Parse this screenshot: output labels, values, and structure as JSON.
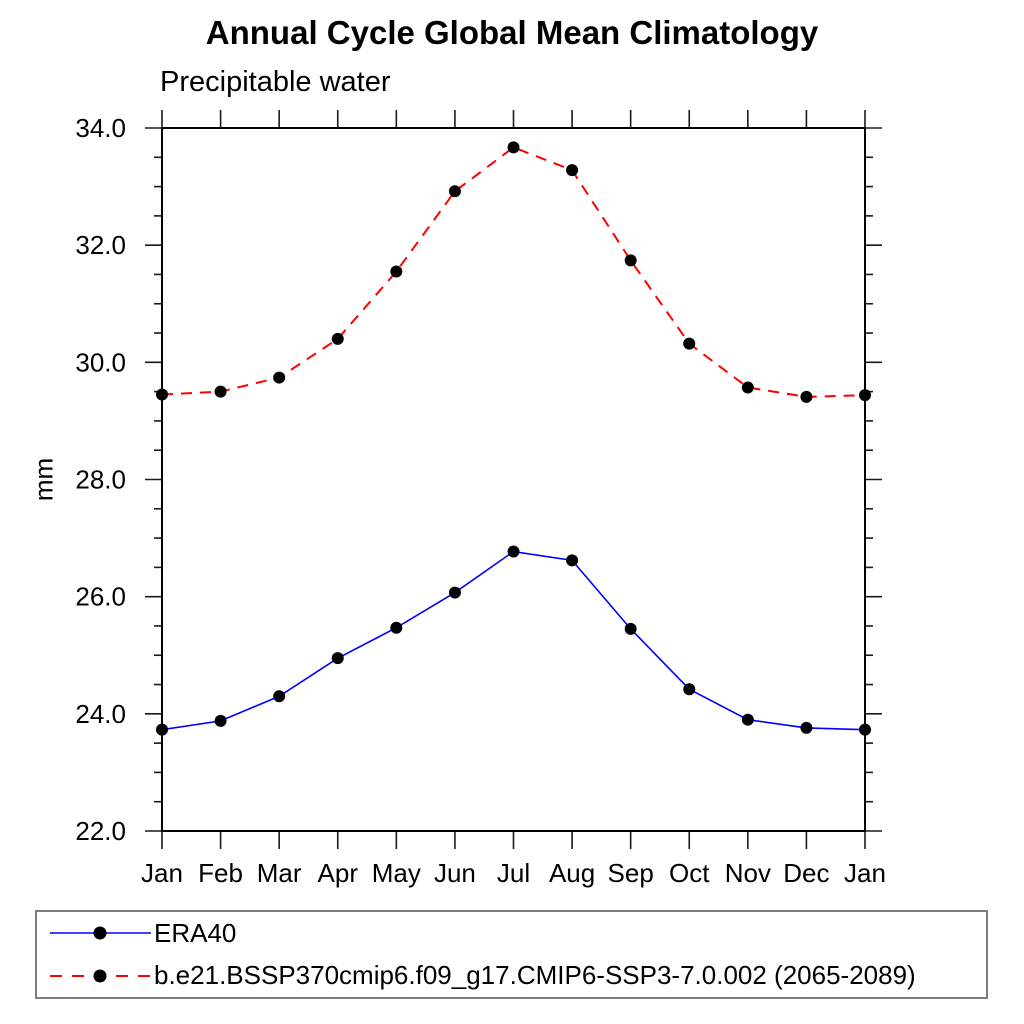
{
  "chart_data": {
    "type": "line",
    "title": "Annual Cycle Global Mean Climatology",
    "subtitle": "Precipitable water",
    "ylabel": "mm",
    "xlabel": "",
    "categories": [
      "Jan",
      "Feb",
      "Mar",
      "Apr",
      "May",
      "Jun",
      "Jul",
      "Aug",
      "Sep",
      "Oct",
      "Nov",
      "Dec",
      "Jan"
    ],
    "ylim": [
      22.0,
      34.0
    ],
    "yticks_major": [
      22.0,
      24.0,
      26.0,
      28.0,
      30.0,
      32.0,
      34.0
    ],
    "ytick_minor_step": 0.5,
    "ytick_label_format": "one-decimal",
    "grid": false,
    "legend_position": "bottom-left-box",
    "frame_color": "#000000",
    "marker": "filled-black-circle",
    "series": [
      {
        "name": "ERA40",
        "color": "#0000ff",
        "style": "solid",
        "values": [
          23.73,
          23.88,
          24.3,
          24.95,
          25.47,
          26.07,
          26.77,
          26.62,
          25.45,
          24.42,
          23.9,
          23.76,
          23.73
        ]
      },
      {
        "name": "b.e21.BSSP370cmip6.f09_g17.CMIP6-SSP3-7.0.002 (2065-2089)",
        "color": "#ff0000",
        "style": "dashed",
        "values": [
          29.45,
          29.5,
          29.74,
          30.4,
          31.55,
          32.92,
          33.67,
          33.28,
          31.74,
          30.32,
          29.57,
          29.41,
          29.44
        ]
      }
    ]
  }
}
